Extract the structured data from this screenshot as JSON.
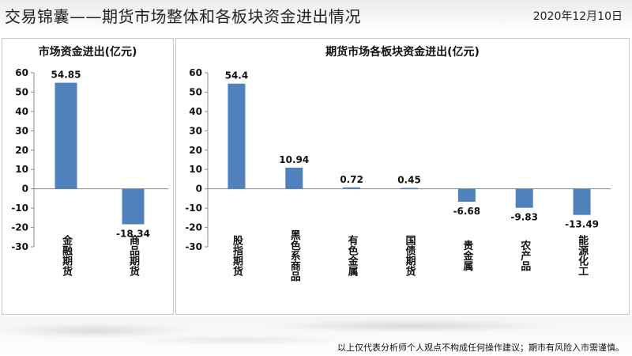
{
  "header": {
    "title": "交易锦囊——期货市场整体和各板块资金进出情况",
    "date": "2020年12月10日"
  },
  "chart_data": [
    {
      "type": "bar",
      "title": "市场资金进出(亿元)",
      "categories": [
        "金融期货",
        "商品期货"
      ],
      "values": [
        54.85,
        -18.34
      ],
      "data_labels": [
        "54.85",
        "-18.34"
      ],
      "ylim": [
        -30,
        60
      ],
      "yticks": [
        60,
        50,
        40,
        30,
        20,
        10,
        0,
        -10,
        -20,
        -30
      ],
      "grid": false,
      "bar_color": "#4f81bd"
    },
    {
      "type": "bar",
      "title": "期货市场各板块资金进出(亿元)",
      "categories": [
        "股指期货",
        "黑色系商品",
        "有色金属",
        "国债期货",
        "贵金属",
        "农产品",
        "能源化工"
      ],
      "values": [
        54.4,
        10.94,
        0.72,
        0.45,
        -6.68,
        -9.83,
        -13.49
      ],
      "data_labels": [
        "54.4",
        "10.94",
        "0.72",
        "0.45",
        "-6.68",
        "-9.83",
        "-13.49"
      ],
      "ylim": [
        -30,
        60
      ],
      "yticks": [
        60,
        50,
        40,
        30,
        20,
        10,
        0,
        -10,
        -20,
        -30
      ],
      "grid": false,
      "bar_color": "#4f81bd"
    }
  ],
  "footer": {
    "disclaimer": "以上仅代表分析师个人观点不构成任何操作建议；期市有风险入市需谨慎。"
  }
}
